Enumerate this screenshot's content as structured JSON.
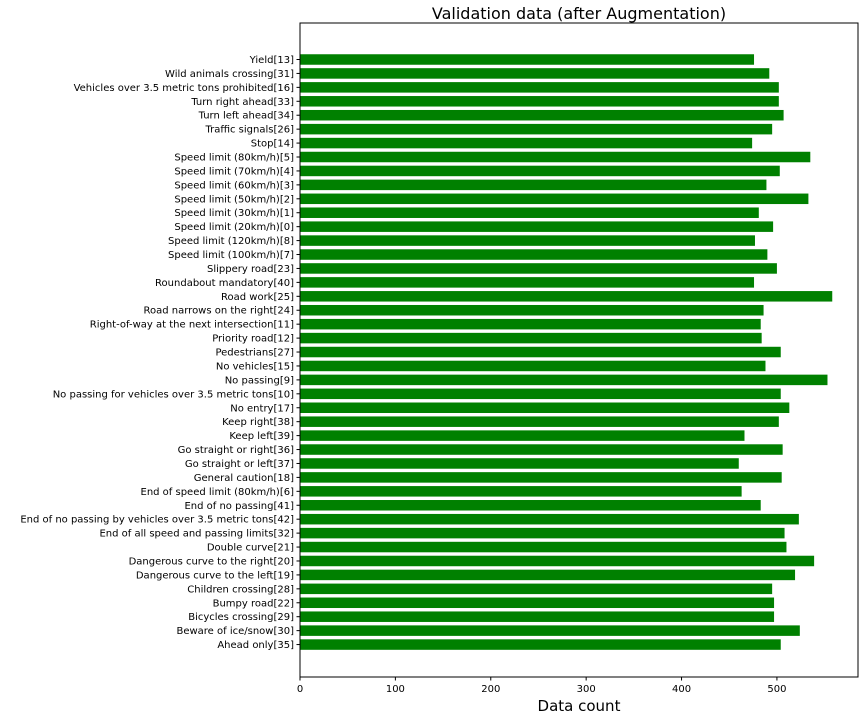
{
  "chart_data": {
    "type": "bar",
    "orientation": "horizontal",
    "title": "Validation data (after Augmentation)",
    "xlabel": "Data count",
    "ylabel": "",
    "xlim": [
      0,
      585
    ],
    "xticks": [
      0,
      100,
      200,
      300,
      400,
      500
    ],
    "grid": false,
    "bar_color": "#008000",
    "categories": [
      "Yield[13]",
      "Wild animals crossing[31]",
      "Vehicles over 3.5 metric tons prohibited[16]",
      "Turn right ahead[33]",
      "Turn left ahead[34]",
      "Traffic signals[26]",
      "Stop[14]",
      "Speed limit (80km/h)[5]",
      "Speed limit (70km/h)[4]",
      "Speed limit (60km/h)[3]",
      "Speed limit (50km/h)[2]",
      "Speed limit (30km/h)[1]",
      "Speed limit (20km/h)[0]",
      "Speed limit (120km/h)[8]",
      "Speed limit (100km/h)[7]",
      "Slippery road[23]",
      "Roundabout mandatory[40]",
      "Road work[25]",
      "Road narrows on the right[24]",
      "Right-of-way at the next intersection[11]",
      "Priority road[12]",
      "Pedestrians[27]",
      "No vehicles[15]",
      "No passing[9]",
      "No passing for vehicles over 3.5 metric tons[10]",
      "No entry[17]",
      "Keep right[38]",
      "Keep left[39]",
      "Go straight or right[36]",
      "Go straight or left[37]",
      "General caution[18]",
      "End of speed limit (80km/h)[6]",
      "End of no passing[41]",
      "End of no passing by vehicles over 3.5 metric tons[42]",
      "End of all speed and passing limits[32]",
      "Double curve[21]",
      "Dangerous curve to the right[20]",
      "Dangerous curve to the left[19]",
      "Children crossing[28]",
      "Bumpy road[22]",
      "Bicycles crossing[29]",
      "Beware of ice/snow[30]",
      "Ahead only[35]"
    ],
    "values": [
      476,
      492,
      502,
      502,
      507,
      495,
      474,
      535,
      503,
      489,
      533,
      481,
      496,
      477,
      490,
      500,
      476,
      558,
      486,
      483,
      484,
      504,
      488,
      553,
      504,
      513,
      502,
      466,
      506,
      460,
      505,
      463,
      483,
      523,
      508,
      510,
      539,
      519,
      495,
      497,
      497,
      524,
      504
    ]
  }
}
